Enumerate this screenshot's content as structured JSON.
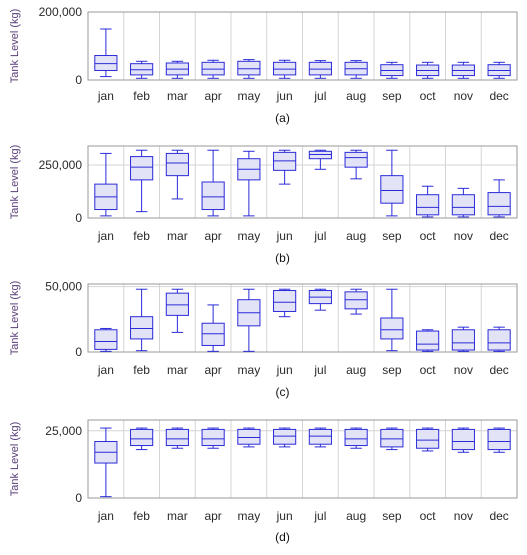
{
  "figure": {
    "months": [
      "jan",
      "feb",
      "mar",
      "apr",
      "may",
      "jun",
      "jul",
      "aug",
      "sep",
      "oct",
      "nov",
      "dec"
    ],
    "colors": {
      "box_stroke": "#2b2bd9",
      "box_fill": "#e3e3f7",
      "axis_title": "#5a3f7a",
      "grid": "#d4d4d4",
      "tick_text": "#2a2a2a"
    }
  },
  "chart_data": [
    {
      "panel": "(a)",
      "type": "box",
      "xlabel": "",
      "ylabel": "Tank Level (kg)",
      "categories": [
        "jan",
        "feb",
        "mar",
        "apr",
        "may",
        "jun",
        "jul",
        "aug",
        "sep",
        "oct",
        "nov",
        "dec"
      ],
      "yticks": [
        0,
        200000
      ],
      "ytick_labels": [
        "0",
        "200,000"
      ],
      "ylim": [
        0,
        200000
      ],
      "grid": true,
      "boxes": [
        {
          "min": 10000,
          "q1": 28000,
          "median": 48000,
          "q3": 72000,
          "max": 150000
        },
        {
          "min": 5000,
          "q1": 15000,
          "median": 30000,
          "q3": 48000,
          "max": 55000
        },
        {
          "min": 5000,
          "q1": 15000,
          "median": 32000,
          "q3": 50000,
          "max": 55000
        },
        {
          "min": 5000,
          "q1": 15000,
          "median": 32000,
          "q3": 52000,
          "max": 58000
        },
        {
          "min": 5000,
          "q1": 15000,
          "median": 33000,
          "q3": 55000,
          "max": 60000
        },
        {
          "min": 5000,
          "q1": 15000,
          "median": 32000,
          "q3": 52000,
          "max": 58000
        },
        {
          "min": 5000,
          "q1": 15000,
          "median": 32000,
          "q3": 52000,
          "max": 57000
        },
        {
          "min": 5000,
          "q1": 15000,
          "median": 33000,
          "q3": 52000,
          "max": 57000
        },
        {
          "min": 5000,
          "q1": 13000,
          "median": 28000,
          "q3": 45000,
          "max": 52000
        },
        {
          "min": 5000,
          "q1": 13000,
          "median": 28000,
          "q3": 44000,
          "max": 52000
        },
        {
          "min": 5000,
          "q1": 13000,
          "median": 28000,
          "q3": 44000,
          "max": 52000
        },
        {
          "min": 5000,
          "q1": 13000,
          "median": 28000,
          "q3": 45000,
          "max": 52000
        }
      ]
    },
    {
      "panel": "(b)",
      "type": "box",
      "xlabel": "",
      "ylabel": "Tank Level (kg)",
      "categories": [
        "jan",
        "feb",
        "mar",
        "apr",
        "may",
        "jun",
        "jul",
        "aug",
        "sep",
        "oct",
        "nov",
        "dec"
      ],
      "yticks": [
        0,
        250000
      ],
      "ytick_labels": [
        "0",
        "250,000"
      ],
      "ylim": [
        0,
        340000
      ],
      "grid": true,
      "boxes": [
        {
          "min": 10000,
          "q1": 40000,
          "median": 100000,
          "q3": 160000,
          "max": 305000
        },
        {
          "min": 30000,
          "q1": 180000,
          "median": 240000,
          "q3": 290000,
          "max": 320000
        },
        {
          "min": 90000,
          "q1": 200000,
          "median": 260000,
          "q3": 305000,
          "max": 320000
        },
        {
          "min": 10000,
          "q1": 40000,
          "median": 100000,
          "q3": 170000,
          "max": 320000
        },
        {
          "min": 10000,
          "q1": 180000,
          "median": 230000,
          "q3": 280000,
          "max": 315000
        },
        {
          "min": 160000,
          "q1": 225000,
          "median": 270000,
          "q3": 310000,
          "max": 320000
        },
        {
          "min": 230000,
          "q1": 280000,
          "median": 300000,
          "q3": 315000,
          "max": 320000
        },
        {
          "min": 185000,
          "q1": 240000,
          "median": 285000,
          "q3": 310000,
          "max": 320000
        },
        {
          "min": 10000,
          "q1": 70000,
          "median": 130000,
          "q3": 200000,
          "max": 320000
        },
        {
          "min": 5000,
          "q1": 15000,
          "median": 50000,
          "q3": 110000,
          "max": 150000
        },
        {
          "min": 5000,
          "q1": 15000,
          "median": 50000,
          "q3": 110000,
          "max": 140000
        },
        {
          "min": 5000,
          "q1": 15000,
          "median": 55000,
          "q3": 120000,
          "max": 180000
        }
      ]
    },
    {
      "panel": "(c)",
      "type": "box",
      "xlabel": "",
      "ylabel": "Tank Level (kg)",
      "categories": [
        "jan",
        "feb",
        "mar",
        "apr",
        "may",
        "jun",
        "jul",
        "aug",
        "sep",
        "oct",
        "nov",
        "dec"
      ],
      "yticks": [
        0,
        50000
      ],
      "ytick_labels": [
        "0",
        "50,000"
      ],
      "ylim": [
        0,
        52000
      ],
      "grid": true,
      "boxes": [
        {
          "min": 500,
          "q1": 2000,
          "median": 8000,
          "q3": 17000,
          "max": 18000
        },
        {
          "min": 1000,
          "q1": 10000,
          "median": 18000,
          "q3": 27000,
          "max": 48000
        },
        {
          "min": 15000,
          "q1": 28000,
          "median": 36000,
          "q3": 45000,
          "max": 48000
        },
        {
          "min": 500,
          "q1": 5000,
          "median": 14000,
          "q3": 22000,
          "max": 36000
        },
        {
          "min": 500,
          "q1": 20000,
          "median": 30000,
          "q3": 40000,
          "max": 48000
        },
        {
          "min": 27000,
          "q1": 31000,
          "median": 38000,
          "q3": 47000,
          "max": 48000
        },
        {
          "min": 32000,
          "q1": 37000,
          "median": 42000,
          "q3": 47000,
          "max": 48000
        },
        {
          "min": 29000,
          "q1": 33000,
          "median": 40000,
          "q3": 46000,
          "max": 48000
        },
        {
          "min": 1000,
          "q1": 10000,
          "median": 17000,
          "q3": 26000,
          "max": 48000
        },
        {
          "min": 500,
          "q1": 1500,
          "median": 6000,
          "q3": 16000,
          "max": 17000
        },
        {
          "min": 500,
          "q1": 1500,
          "median": 7000,
          "q3": 17000,
          "max": 19000
        },
        {
          "min": 500,
          "q1": 1500,
          "median": 7000,
          "q3": 17000,
          "max": 19000
        }
      ]
    },
    {
      "panel": "(d)",
      "type": "box",
      "xlabel": "",
      "ylabel": "Tank Level (kg)",
      "categories": [
        "jan",
        "feb",
        "mar",
        "apr",
        "may",
        "jun",
        "jul",
        "aug",
        "sep",
        "oct",
        "nov",
        "dec"
      ],
      "yticks": [
        0,
        25000
      ],
      "ytick_labels": [
        "0",
        "25,000"
      ],
      "ylim": [
        0,
        29000
      ],
      "grid": true,
      "boxes": [
        {
          "min": 500,
          "q1": 13000,
          "median": 17000,
          "q3": 21000,
          "max": 26000
        },
        {
          "min": 18000,
          "q1": 19500,
          "median": 22000,
          "q3": 25500,
          "max": 26000
        },
        {
          "min": 18500,
          "q1": 19500,
          "median": 22000,
          "q3": 25500,
          "max": 26000
        },
        {
          "min": 18500,
          "q1": 19500,
          "median": 22000,
          "q3": 25500,
          "max": 26000
        },
        {
          "min": 19000,
          "q1": 20000,
          "median": 22500,
          "q3": 25500,
          "max": 26000
        },
        {
          "min": 19000,
          "q1": 20000,
          "median": 23000,
          "q3": 25500,
          "max": 26000
        },
        {
          "min": 19000,
          "q1": 20000,
          "median": 23000,
          "q3": 25500,
          "max": 26000
        },
        {
          "min": 18500,
          "q1": 19500,
          "median": 22000,
          "q3": 25500,
          "max": 26000
        },
        {
          "min": 18000,
          "q1": 19000,
          "median": 22000,
          "q3": 25500,
          "max": 26000
        },
        {
          "min": 17500,
          "q1": 18500,
          "median": 21500,
          "q3": 25500,
          "max": 26000
        },
        {
          "min": 17000,
          "q1": 18000,
          "median": 21000,
          "q3": 25500,
          "max": 26000
        },
        {
          "min": 17000,
          "q1": 18000,
          "median": 21000,
          "q3": 25500,
          "max": 26000
        }
      ]
    }
  ]
}
